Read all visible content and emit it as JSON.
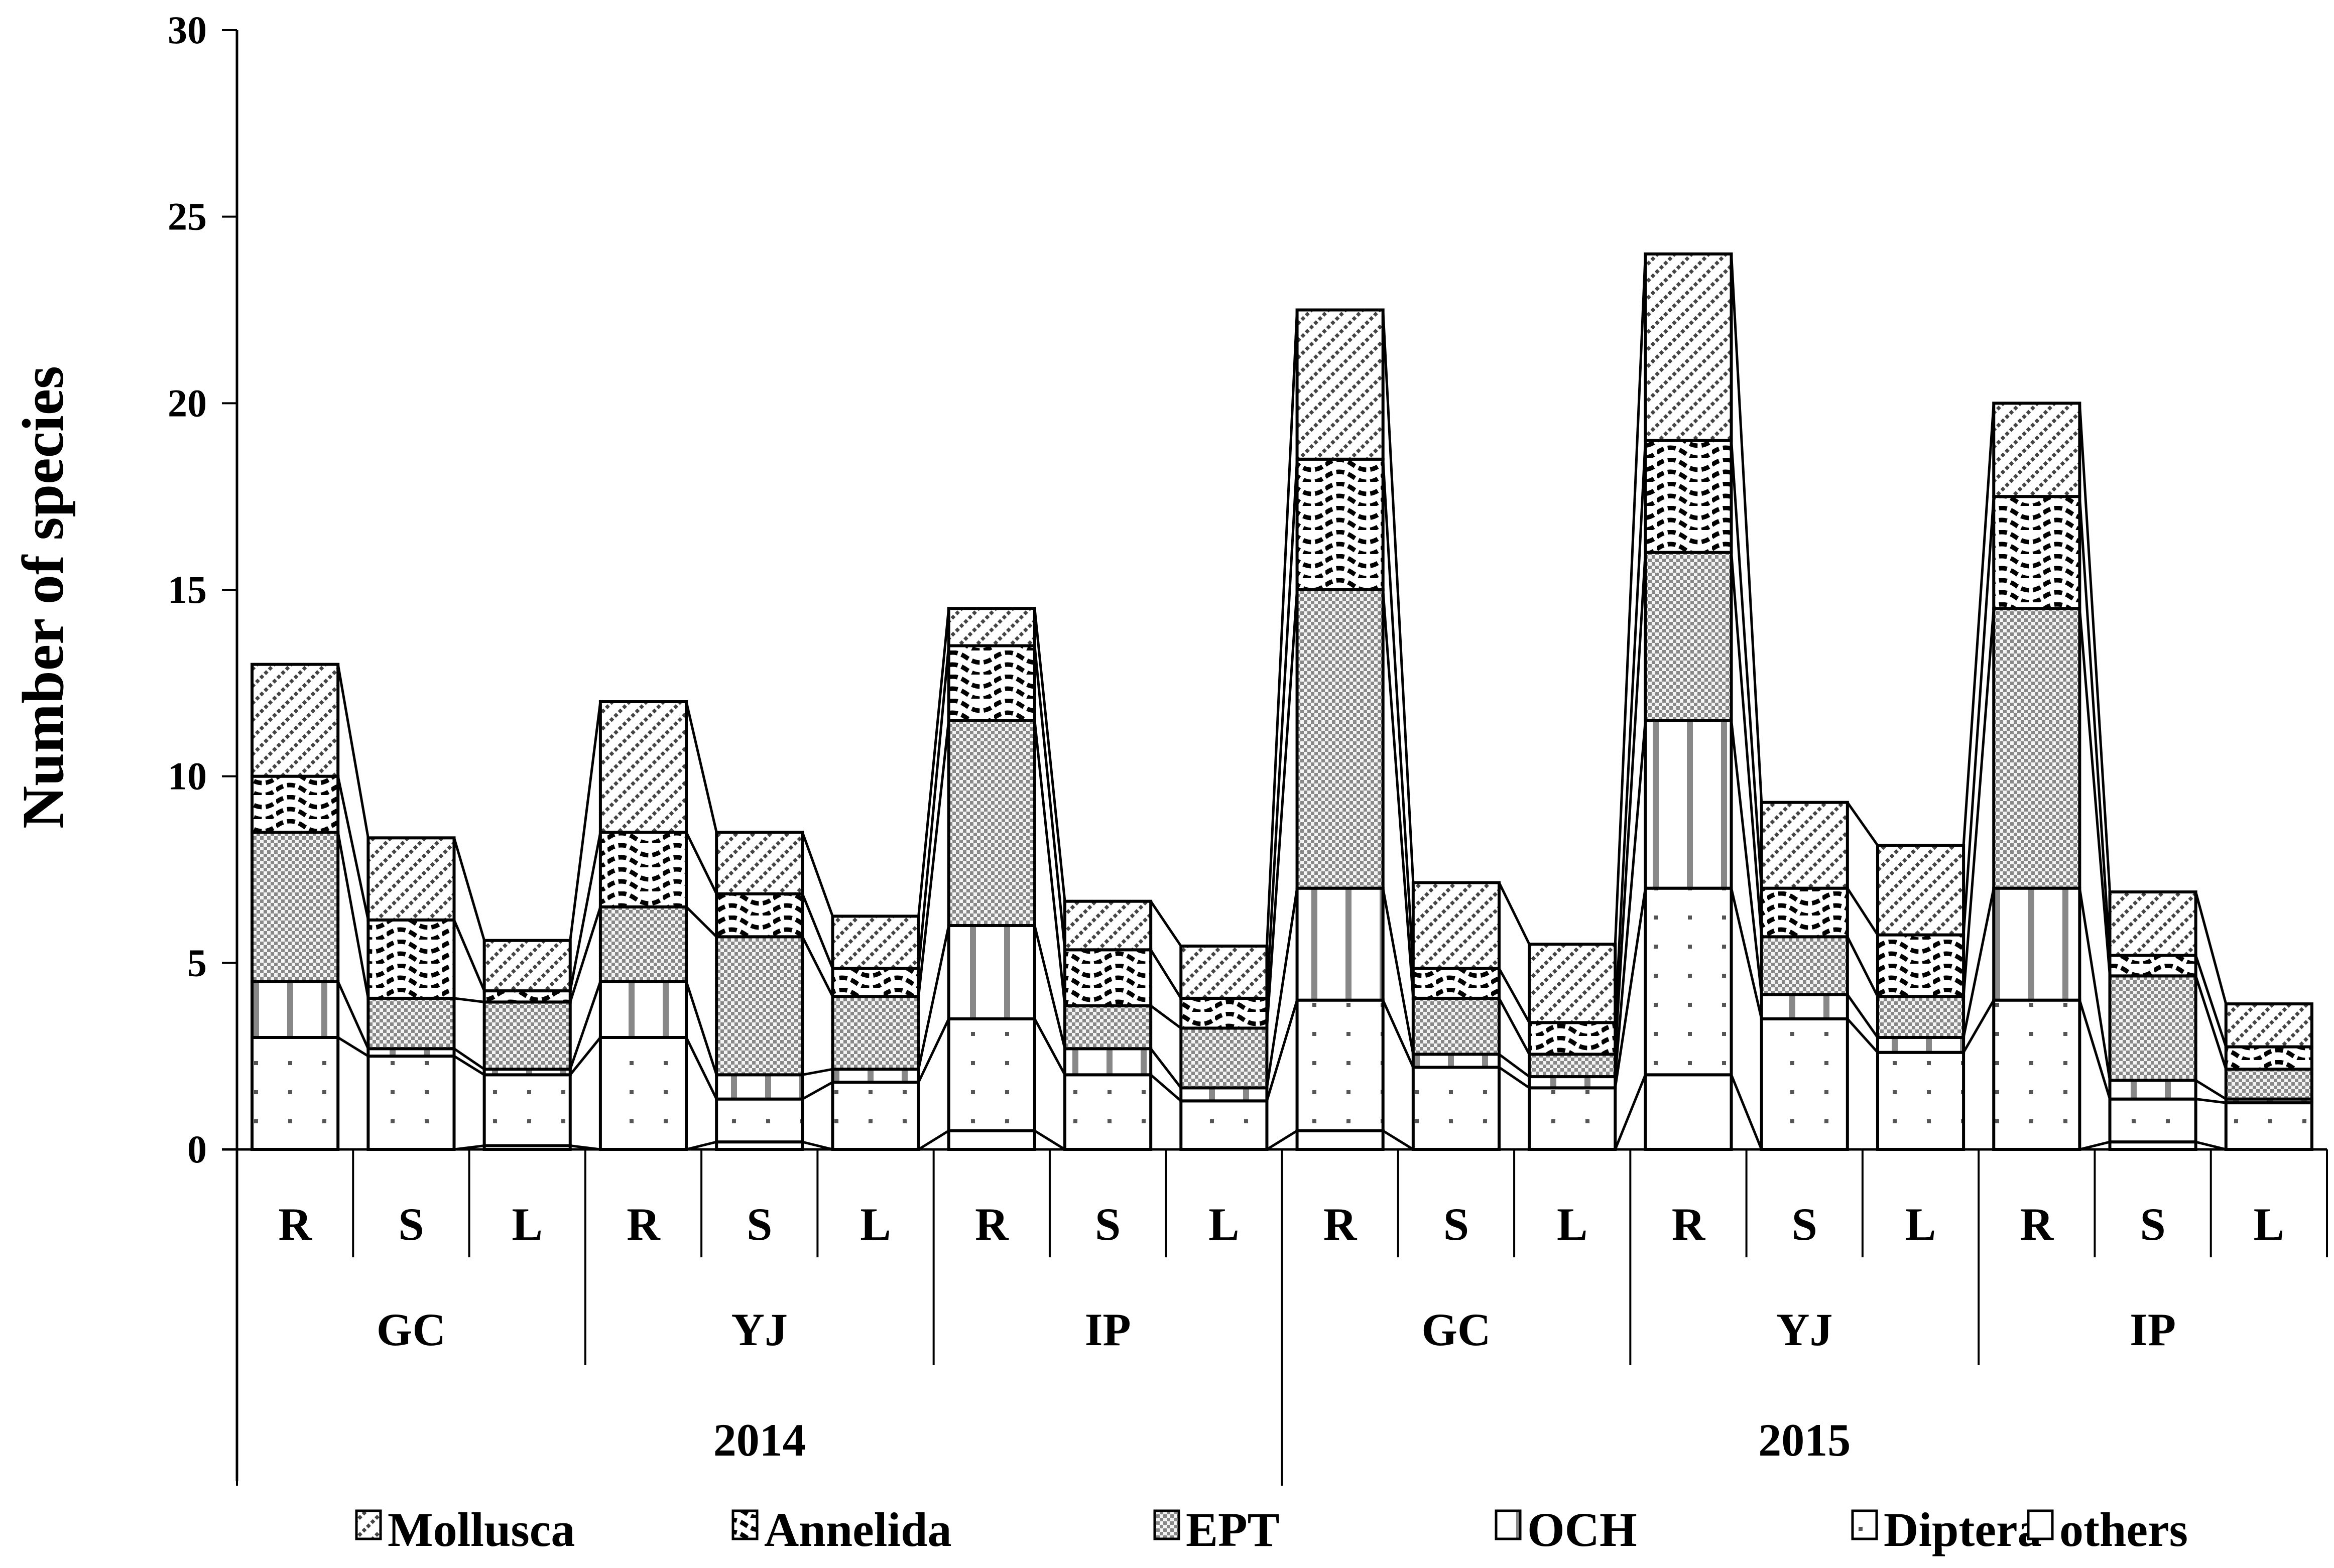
{
  "chart_data": {
    "type": "bar",
    "stacked": true,
    "title": "",
    "xlabel": "",
    "ylabel": "Number of species",
    "ylim": [
      0,
      30
    ],
    "yticks": [
      0,
      5,
      10,
      15,
      20,
      25,
      30
    ],
    "grid": false,
    "legend_position": "bottom",
    "series_order_bottom_to_top": [
      "others",
      "Diptera",
      "OCH",
      "EPT",
      "Annelida",
      "Mollusca"
    ],
    "legend": [
      "Mollusca",
      "Annelida",
      "EPT",
      "OCH",
      "Diptera",
      "others"
    ],
    "categories": [
      {
        "habitat": "R",
        "site": "GC",
        "year": "2014"
      },
      {
        "habitat": "S",
        "site": "GC",
        "year": "2014"
      },
      {
        "habitat": "L",
        "site": "GC",
        "year": "2014"
      },
      {
        "habitat": "R",
        "site": "YJ",
        "year": "2014"
      },
      {
        "habitat": "S",
        "site": "YJ",
        "year": "2014"
      },
      {
        "habitat": "L",
        "site": "YJ",
        "year": "2014"
      },
      {
        "habitat": "R",
        "site": "IP",
        "year": "2014"
      },
      {
        "habitat": "S",
        "site": "IP",
        "year": "2014"
      },
      {
        "habitat": "L",
        "site": "IP",
        "year": "2014"
      },
      {
        "habitat": "R",
        "site": "GC",
        "year": "2015"
      },
      {
        "habitat": "S",
        "site": "GC",
        "year": "2015"
      },
      {
        "habitat": "L",
        "site": "GC",
        "year": "2015"
      },
      {
        "habitat": "R",
        "site": "YJ",
        "year": "2015"
      },
      {
        "habitat": "S",
        "site": "YJ",
        "year": "2015"
      },
      {
        "habitat": "L",
        "site": "YJ",
        "year": "2015"
      },
      {
        "habitat": "R",
        "site": "IP",
        "year": "2015"
      },
      {
        "habitat": "S",
        "site": "IP",
        "year": "2015"
      },
      {
        "habitat": "L",
        "site": "IP",
        "year": "2015"
      }
    ],
    "site_groups": [
      {
        "label": "GC",
        "year": "2014"
      },
      {
        "label": "YJ",
        "year": "2014"
      },
      {
        "label": "IP",
        "year": "2014"
      },
      {
        "label": "GC",
        "year": "2015"
      },
      {
        "label": "YJ",
        "year": "2015"
      },
      {
        "label": "IP",
        "year": "2015"
      }
    ],
    "years": [
      "2014",
      "2015"
    ],
    "series": [
      {
        "name": "others",
        "pattern": "blank",
        "values": [
          0,
          0,
          0.1,
          0,
          0.2,
          0,
          0.5,
          0,
          0,
          0.5,
          0,
          0,
          2.0,
          0,
          0,
          0,
          0.2,
          0
        ]
      },
      {
        "name": "Diptera",
        "pattern": "dots",
        "values": [
          3.0,
          2.5,
          1.9,
          3.0,
          1.15,
          1.8,
          3.0,
          2.0,
          1.3,
          3.5,
          2.2,
          1.65,
          5.0,
          3.5,
          2.6,
          4.0,
          1.15,
          1.25
        ]
      },
      {
        "name": "OCH",
        "pattern": "vertical",
        "values": [
          1.5,
          0.2,
          0.15,
          1.5,
          0.65,
          0.35,
          2.5,
          0.7,
          0.35,
          3.0,
          0.35,
          0.3,
          4.5,
          0.65,
          0.4,
          3.0,
          0.5,
          0.1
        ]
      },
      {
        "name": "EPT",
        "pattern": "checker",
        "values": [
          4.0,
          1.35,
          1.8,
          2.0,
          3.7,
          1.95,
          5.5,
          1.15,
          1.6,
          8.0,
          1.5,
          0.6,
          4.5,
          1.55,
          1.1,
          7.5,
          2.8,
          0.8
        ]
      },
      {
        "name": "Annelida",
        "pattern": "wave",
        "values": [
          1.5,
          2.1,
          0.3,
          2.0,
          1.15,
          0.75,
          2.0,
          1.5,
          0.8,
          3.5,
          0.8,
          0.85,
          3.0,
          1.3,
          1.65,
          3.0,
          0.55,
          0.6
        ]
      },
      {
        "name": "Mollusca",
        "pattern": "diagonal",
        "values": [
          3.0,
          2.2,
          1.35,
          3.5,
          1.65,
          1.4,
          1.0,
          1.3,
          1.4,
          4.0,
          2.3,
          2.1,
          5.0,
          2.3,
          2.4,
          2.5,
          1.7,
          1.15
        ]
      }
    ],
    "totals": [
      13.0,
      8.35,
      5.6,
      12.0,
      8.5,
      6.25,
      14.5,
      6.65,
      5.45,
      22.5,
      7.15,
      5.5,
      24.0,
      9.3,
      8.15,
      20.0,
      6.9,
      3.9
    ]
  }
}
